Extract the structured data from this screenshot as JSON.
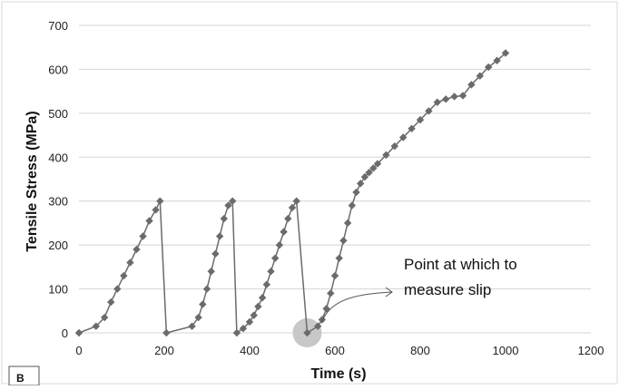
{
  "chart_data": {
    "type": "line",
    "title": "",
    "xlabel": "Time (s)",
    "ylabel": "Tensile Stress (MPa)",
    "xlim": [
      0,
      1200
    ],
    "ylim": [
      0,
      700
    ],
    "x_ticks": [
      0,
      200,
      400,
      600,
      800,
      1000,
      1200
    ],
    "y_ticks": [
      0,
      100,
      200,
      300,
      400,
      500,
      600,
      700
    ],
    "grid": "horizontal",
    "legend": "none",
    "series_color": "#6b6b6b",
    "highlight_color": "#c8c8c8",
    "panel_label": "B",
    "annotation": {
      "text_line1": "Point at which to",
      "text_line2": "measure slip",
      "target": [
        535,
        0
      ]
    },
    "series": [
      {
        "marker": "diamond",
        "x": [
          0,
          40,
          60,
          75,
          90,
          105,
          120,
          135,
          150,
          165,
          180,
          190,
          205,
          265,
          280,
          290,
          300,
          310,
          320,
          330,
          340,
          350,
          360,
          370,
          385,
          400,
          410,
          420,
          430,
          440,
          450,
          460,
          470,
          480,
          490,
          500,
          510,
          535,
          560,
          570,
          580,
          590,
          600,
          610,
          620,
          630,
          640,
          650,
          660,
          670,
          680,
          690,
          700,
          720,
          740,
          760,
          780,
          800,
          820,
          840,
          860,
          880,
          900,
          920,
          940,
          960,
          980,
          1000
        ],
        "y": [
          0,
          15,
          35,
          70,
          100,
          130,
          160,
          190,
          220,
          255,
          280,
          300,
          0,
          15,
          35,
          65,
          100,
          140,
          180,
          220,
          260,
          290,
          300,
          0,
          10,
          25,
          40,
          60,
          80,
          110,
          140,
          170,
          200,
          230,
          260,
          285,
          300,
          0,
          15,
          30,
          55,
          90,
          130,
          170,
          210,
          250,
          290,
          320,
          340,
          355,
          365,
          375,
          385,
          405,
          425,
          445,
          465,
          485,
          505,
          525,
          532,
          538,
          540,
          565,
          585,
          605,
          620,
          637
        ]
      }
    ]
  }
}
